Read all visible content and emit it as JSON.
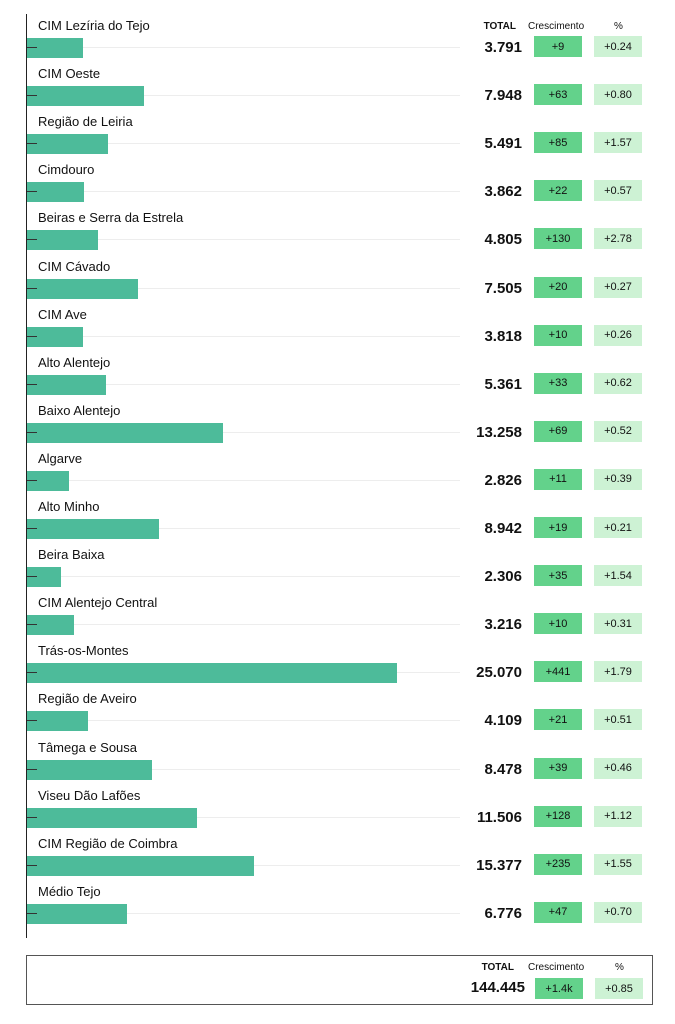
{
  "headers": {
    "total": "TOTAL",
    "growth": "Crescimento",
    "pct": "%"
  },
  "chart_data": {
    "type": "bar",
    "orientation": "horizontal",
    "categories": [
      "CIM Lezíria do Tejo",
      "CIM Oeste",
      "Região de Leiria",
      "Cimdouro",
      "Beiras e Serra da Estrela",
      "CIM Cávado",
      "CIM Ave",
      "Alto Alentejo",
      "Baixo Alentejo",
      "Algarve",
      "Alto Minho",
      "Beira Baixa",
      "CIM Alentejo Central",
      "Trás-os-Montes",
      "Região de Aveiro",
      "Tâmega e Sousa",
      "Viseu Dão Lafões",
      "CIM Região de Coimbra",
      "Médio Tejo"
    ],
    "values": [
      3791,
      7948,
      5491,
      3862,
      4805,
      7505,
      3818,
      5361,
      13258,
      2826,
      8942,
      2306,
      3216,
      25070,
      4109,
      8478,
      11506,
      15377,
      6776
    ],
    "value_labels": [
      "3.791",
      "7.948",
      "5.491",
      "3.862",
      "4.805",
      "7.505",
      "3.818",
      "5.361",
      "13.258",
      "2.826",
      "8.942",
      "2.306",
      "3.216",
      "25.070",
      "4.109",
      "8.478",
      "11.506",
      "15.377",
      "6.776"
    ],
    "growth": [
      "+9",
      "+63",
      "+85",
      "+22",
      "+130",
      "+20",
      "+10",
      "+33",
      "+69",
      "+11",
      "+19",
      "+35",
      "+10",
      "+441",
      "+21",
      "+39",
      "+128",
      "+235",
      "+47"
    ],
    "pct": [
      "+0.24",
      "+0.80",
      "+1.57",
      "+0.57",
      "+2.78",
      "+0.27",
      "+0.26",
      "+0.62",
      "+0.52",
      "+0.39",
      "+0.21",
      "+1.54",
      "+0.31",
      "+1.79",
      "+0.51",
      "+0.46",
      "+1.12",
      "+1.55",
      "+0.70"
    ],
    "xlim": [
      0,
      25070
    ],
    "grid": true,
    "colors": {
      "bar": "#4dbb9a",
      "growth": "#63d28b",
      "pct": "#cdf2d4"
    }
  },
  "summary": {
    "total": "144.445",
    "growth": "+1.4k",
    "pct": "+0.85"
  }
}
